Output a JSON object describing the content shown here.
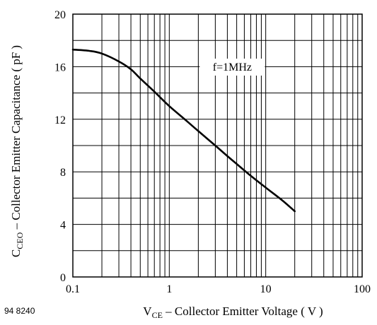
{
  "chart_data": {
    "type": "line",
    "x_scale": "log",
    "xlim": [
      0.1,
      100
    ],
    "ylim": [
      0,
      20
    ],
    "x_ticks": [
      "0.1",
      "1",
      "10",
      "100"
    ],
    "y_ticks": [
      "0",
      "4",
      "8",
      "12",
      "16",
      "20"
    ],
    "grid": true,
    "xlabel": {
      "main": "V",
      "sub": "CE",
      "rest": " – Collector Emitter Voltage ( V )"
    },
    "ylabel": {
      "main": "C",
      "sub": "CEO",
      "rest": " – Collector Emitter Capacitance ( pF )"
    },
    "annotation": "f=1MHz",
    "ref_code": "94 8240",
    "series": [
      {
        "x": [
          0.1,
          0.15,
          0.2,
          0.3,
          0.4,
          0.5,
          0.7,
          1,
          1.5,
          2,
          3,
          4,
          5,
          7,
          10,
          15,
          20
        ],
        "values": [
          17.3,
          17.2,
          17.0,
          16.4,
          15.8,
          15.1,
          14.1,
          13.0,
          11.9,
          11.1,
          10.0,
          9.2,
          8.6,
          7.7,
          6.8,
          5.8,
          5.0
        ]
      }
    ]
  }
}
